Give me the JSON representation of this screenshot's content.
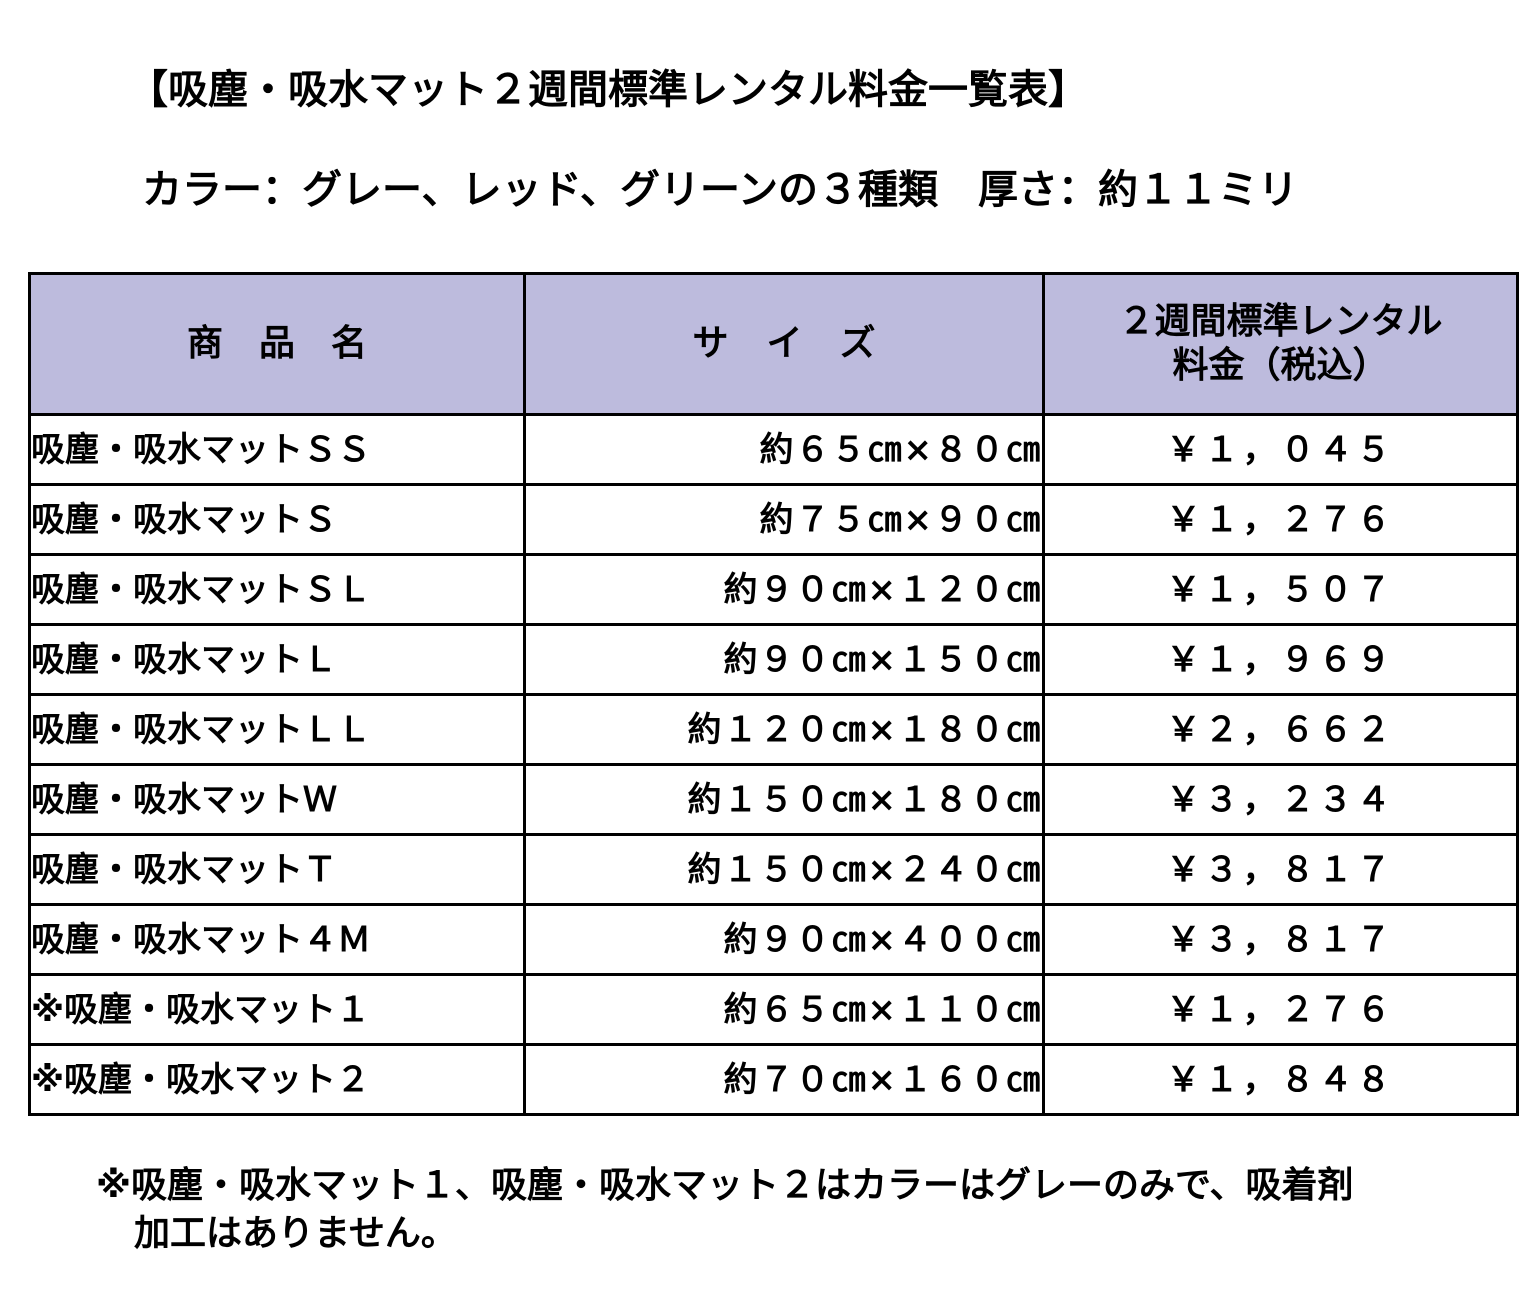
{
  "title": "【吸塵・吸水マット２週間標準レンタル料金一覧表】",
  "subtitle": "カラー：グレー、レッド、グリーンの３種類　厚さ：約１１ミリ",
  "table": {
    "headers": {
      "name": "商品名",
      "size": "サイズ",
      "price_line1": "２週間標準レンタル",
      "price_line2": "料金（税込）"
    },
    "rows": [
      {
        "name": "吸塵・吸水マットＳＳ",
        "size": "約６５㎝×８０㎝",
        "price": "￥１，０４５"
      },
      {
        "name": "吸塵・吸水マットＳ",
        "size": "約７５㎝×９０㎝",
        "price": "￥１，２７６"
      },
      {
        "name": "吸塵・吸水マットＳＬ",
        "size": "約９０㎝×１２０㎝",
        "price": "￥１，５０７"
      },
      {
        "name": "吸塵・吸水マットＬ",
        "size": "約９０㎝×１５０㎝",
        "price": "￥１，９６９"
      },
      {
        "name": "吸塵・吸水マットＬＬ",
        "size": "約１２０㎝×１８０㎝",
        "price": "￥２，６６２"
      },
      {
        "name": "吸塵・吸水マットＷ",
        "size": "約１５０㎝×１８０㎝",
        "price": "￥３，２３４"
      },
      {
        "name": "吸塵・吸水マットＴ",
        "size": "約１５０㎝×２４０㎝",
        "price": "￥３，８１７"
      },
      {
        "name": "吸塵・吸水マット４Ｍ",
        "size": "約９０㎝×４００㎝",
        "price": "￥３，８１７"
      },
      {
        "name": "※吸塵・吸水マット１",
        "size": "約６５㎝×１１０㎝",
        "price": "￥１，２７６"
      },
      {
        "name": "※吸塵・吸水マット２",
        "size": "約７０㎝×１６０㎝",
        "price": "￥１，８４８"
      }
    ]
  },
  "note": {
    "line1": "※吸塵・吸水マット１、吸塵・吸水マット２はカラーはグレーのみで、吸着剤",
    "line2": "加工はありません。"
  },
  "colors": {
    "header_bg": "#bdbbdd",
    "border": "#000000",
    "text": "#000000"
  }
}
